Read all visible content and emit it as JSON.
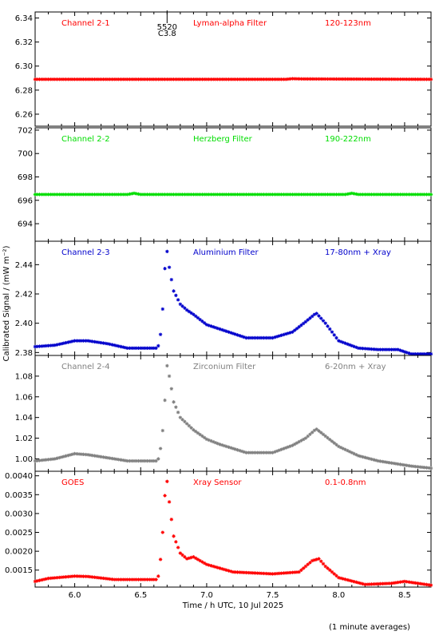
{
  "chart_data": {
    "type": "scatter",
    "x_axis": {
      "label": "Time / h UTC, 10 Jul 2025",
      "range": [
        5.7,
        8.7
      ],
      "ticks": [
        6.0,
        6.5,
        7.0,
        7.5,
        8.0,
        8.5
      ],
      "tick_labels": [
        "6.0",
        "6.5",
        "7.0",
        "7.5",
        "8.0",
        "8.5"
      ]
    },
    "y_axis_label": "Calibrated Signal / (mW m⁻²)",
    "footnote": "(1 minute averages)",
    "panels": [
      {
        "channel": "Channel 2-1",
        "filter": "Lyman-alpha Filter",
        "band": "120-123nm",
        "color": "#ff0000",
        "ylim": [
          6.25,
          6.345
        ],
        "yticks": [
          6.26,
          6.28,
          6.3,
          6.32,
          6.34
        ],
        "ytick_labels": [
          "6.26",
          "6.28",
          "6.30",
          "6.32",
          "6.34"
        ],
        "marker_annotation": {
          "x": 6.7,
          "label_top": "5520",
          "label_bottom": "C3.8"
        },
        "profile": [
          [
            5.7,
            6.289
          ],
          [
            7.6,
            6.289
          ],
          [
            7.65,
            6.2895
          ],
          [
            7.72,
            6.2893
          ],
          [
            8.7,
            6.289
          ]
        ]
      },
      {
        "channel": "Channel 2-2",
        "filter": "Herzberg Filter",
        "band": "190-222nm",
        "color": "#00dd00",
        "ylim": [
          692.5,
          702.2
        ],
        "yticks": [
          694,
          696,
          698,
          700,
          702
        ],
        "ytick_labels": [
          "694",
          "696",
          "698",
          "700",
          "702"
        ],
        "profile": [
          [
            5.7,
            696.5
          ],
          [
            6.4,
            696.5
          ],
          [
            6.45,
            696.6
          ],
          [
            6.5,
            696.5
          ],
          [
            8.05,
            696.5
          ],
          [
            8.1,
            696.6
          ],
          [
            8.15,
            696.5
          ],
          [
            8.7,
            696.5
          ]
        ]
      },
      {
        "channel": "Channel 2-3",
        "filter": "Aluminium Filter",
        "band": "17-80nm + Xray",
        "color": "#0000cc",
        "ylim": [
          2.378,
          2.456
        ],
        "yticks": [
          2.38,
          2.4,
          2.42,
          2.44
        ],
        "ytick_labels": [
          "2.38",
          "2.40",
          "2.42",
          "2.44"
        ],
        "profile": [
          [
            5.7,
            2.384
          ],
          [
            5.85,
            2.385
          ],
          [
            6.0,
            2.388
          ],
          [
            6.1,
            2.388
          ],
          [
            6.25,
            2.386
          ],
          [
            6.4,
            2.383
          ],
          [
            6.63,
            2.383
          ],
          [
            6.66,
            2.397
          ],
          [
            6.68,
            2.435
          ],
          [
            6.7,
            2.449
          ],
          [
            6.72,
            2.436
          ],
          [
            6.75,
            2.422
          ],
          [
            6.8,
            2.413
          ],
          [
            6.85,
            2.409
          ],
          [
            6.9,
            2.406
          ],
          [
            7.0,
            2.399
          ],
          [
            7.1,
            2.396
          ],
          [
            7.3,
            2.39
          ],
          [
            7.5,
            2.39
          ],
          [
            7.65,
            2.394
          ],
          [
            7.75,
            2.401
          ],
          [
            7.83,
            2.407
          ],
          [
            7.9,
            2.4
          ],
          [
            8.0,
            2.388
          ],
          [
            8.15,
            2.383
          ],
          [
            8.3,
            2.382
          ],
          [
            8.45,
            2.382
          ],
          [
            8.55,
            2.379
          ],
          [
            8.7,
            2.379
          ]
        ]
      },
      {
        "channel": "Channel 2-4",
        "filter": "Zirconium Filter",
        "band": "6-20nm + Xray",
        "color": "#808080",
        "ylim": [
          0.988,
          1.1
        ],
        "yticks": [
          1.0,
          1.02,
          1.04,
          1.06,
          1.08
        ],
        "ytick_labels": [
          "1.00",
          "1.02",
          "1.04",
          "1.06",
          "1.08"
        ],
        "profile": [
          [
            5.7,
            0.998
          ],
          [
            5.85,
            1.0
          ],
          [
            6.0,
            1.005
          ],
          [
            6.1,
            1.004
          ],
          [
            6.25,
            1.001
          ],
          [
            6.4,
            0.998
          ],
          [
            6.63,
            0.998
          ],
          [
            6.66,
            1.016
          ],
          [
            6.68,
            1.05
          ],
          [
            6.7,
            1.09
          ],
          [
            6.72,
            1.078
          ],
          [
            6.75,
            1.055
          ],
          [
            6.8,
            1.04
          ],
          [
            6.9,
            1.028
          ],
          [
            7.0,
            1.019
          ],
          [
            7.1,
            1.014
          ],
          [
            7.3,
            1.006
          ],
          [
            7.5,
            1.006
          ],
          [
            7.65,
            1.013
          ],
          [
            7.75,
            1.02
          ],
          [
            7.83,
            1.029
          ],
          [
            7.9,
            1.022
          ],
          [
            8.0,
            1.012
          ],
          [
            8.15,
            1.003
          ],
          [
            8.3,
            0.998
          ],
          [
            8.45,
            0.995
          ],
          [
            8.55,
            0.993
          ],
          [
            8.7,
            0.991
          ]
        ]
      },
      {
        "channel": "GOES",
        "filter": "Xray Sensor",
        "band": "0.1-0.8nm",
        "color": "#ff0000",
        "ylim": [
          0.00105,
          0.00412
        ],
        "yticks": [
          0.0015,
          0.002,
          0.0025,
          0.003,
          0.0035,
          0.004
        ],
        "ytick_labels": [
          "0.0015",
          "0.0020",
          "0.0025",
          "0.0030",
          "0.0035",
          "0.0040"
        ],
        "profile": [
          [
            5.7,
            0.0012
          ],
          [
            5.8,
            0.00128
          ],
          [
            6.0,
            0.00134
          ],
          [
            6.1,
            0.00133
          ],
          [
            6.3,
            0.00125
          ],
          [
            6.63,
            0.00125
          ],
          [
            6.66,
            0.00205
          ],
          [
            6.68,
            0.0034
          ],
          [
            6.7,
            0.00385
          ],
          [
            6.72,
            0.0032
          ],
          [
            6.75,
            0.0024
          ],
          [
            6.8,
            0.00195
          ],
          [
            6.85,
            0.0018
          ],
          [
            6.9,
            0.00185
          ],
          [
            7.0,
            0.00165
          ],
          [
            7.2,
            0.00145
          ],
          [
            7.5,
            0.0014
          ],
          [
            7.7,
            0.00145
          ],
          [
            7.8,
            0.00175
          ],
          [
            7.85,
            0.0018
          ],
          [
            7.9,
            0.0016
          ],
          [
            8.0,
            0.0013
          ],
          [
            8.2,
            0.00112
          ],
          [
            8.4,
            0.00115
          ],
          [
            8.5,
            0.0012
          ],
          [
            8.7,
            0.0011
          ]
        ]
      }
    ]
  }
}
